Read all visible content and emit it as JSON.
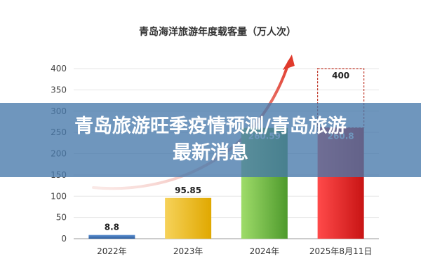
{
  "chart_data": {
    "type": "bar",
    "title": "青岛海洋旅游年度载客量（万人次）",
    "categories": [
      "2022年",
      "2023年",
      "2024年",
      "2025年8月11日"
    ],
    "values": [
      8.8,
      95.85,
      260.59,
      260.8
    ],
    "value_labels": [
      "8.8",
      "95.85",
      "260.59",
      "260.8"
    ],
    "projection": {
      "value": 400,
      "label": "400"
    },
    "ylim": [
      0,
      400
    ],
    "yticks": [
      0,
      50,
      100,
      150,
      200,
      250,
      300,
      350,
      400
    ],
    "colors": {
      "bar_2022": "#2f5f9e",
      "bar_2023": "#f0b400",
      "bar_2024": "#5fa83a",
      "bar_2025": "#e02020",
      "arrow": "#e03a2c",
      "projection_border": "#c0392b"
    }
  },
  "banner": {
    "line1": "青岛旅游旺季疫情预测/青岛旅游",
    "line2": "最新消息"
  }
}
